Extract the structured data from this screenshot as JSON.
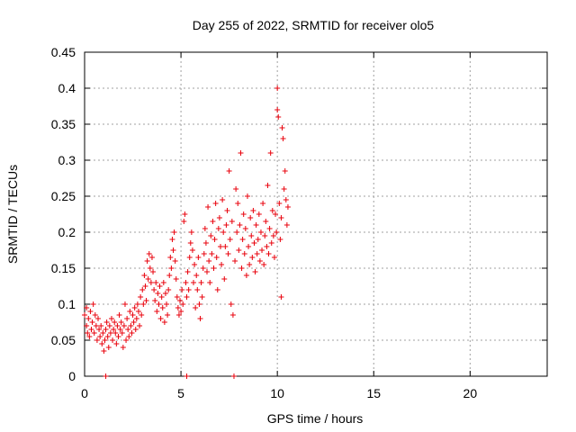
{
  "chart_data": {
    "type": "scatter",
    "title": "Day 255 of 2022, SRMTID for receiver olo5",
    "xlabel": "GPS time / hours",
    "ylabel": "SRMTID / TECUs",
    "xlim": [
      0,
      24
    ],
    "ylim": [
      0,
      0.45
    ],
    "xticks": [
      0,
      5,
      10,
      15,
      20
    ],
    "xtick_labels": [
      "0",
      "5",
      "10",
      "15",
      "20"
    ],
    "yticks": [
      0,
      0.05,
      0.1,
      0.15,
      0.2,
      0.25,
      0.3,
      0.35,
      0.4,
      0.45
    ],
    "ytick_labels": [
      "0",
      "0.05",
      "0.1",
      "0.15",
      "0.2",
      "0.25",
      "0.3",
      "0.35",
      "0.4",
      "0.45"
    ],
    "grid": true,
    "marker": "+",
    "color": "#e8000b",
    "series": [
      {
        "name": "olo5",
        "points": [
          [
            0.0,
            0.085
          ],
          [
            0.1,
            0.07
          ],
          [
            0.1,
            0.095
          ],
          [
            0.15,
            0.06
          ],
          [
            0.2,
            0.08
          ],
          [
            0.25,
            0.055
          ],
          [
            0.3,
            0.09
          ],
          [
            0.35,
            0.065
          ],
          [
            0.4,
            0.075
          ],
          [
            0.45,
            0.1
          ],
          [
            0.5,
            0.06
          ],
          [
            0.55,
            0.085
          ],
          [
            0.6,
            0.07
          ],
          [
            0.65,
            0.05
          ],
          [
            0.7,
            0.08
          ],
          [
            0.75,
            0.065
          ],
          [
            0.8,
            0.055
          ],
          [
            0.85,
            0.07
          ],
          [
            0.9,
            0.045
          ],
          [
            0.95,
            0.06
          ],
          [
            1.0,
            0.035
          ],
          [
            1.05,
            0.05
          ],
          [
            1.1,
            0.0
          ],
          [
            1.1,
            0.065
          ],
          [
            1.15,
            0.075
          ],
          [
            1.2,
            0.055
          ],
          [
            1.25,
            0.04
          ],
          [
            1.3,
            0.07
          ],
          [
            1.35,
            0.06
          ],
          [
            1.4,
            0.08
          ],
          [
            1.45,
            0.05
          ],
          [
            1.5,
            0.065
          ],
          [
            1.55,
            0.075
          ],
          [
            1.6,
            0.06
          ],
          [
            1.65,
            0.045
          ],
          [
            1.7,
            0.07
          ],
          [
            1.75,
            0.055
          ],
          [
            1.8,
            0.085
          ],
          [
            1.85,
            0.065
          ],
          [
            1.9,
            0.075
          ],
          [
            1.95,
            0.06
          ],
          [
            2.0,
            0.04
          ],
          [
            2.05,
            0.07
          ],
          [
            2.1,
            0.1
          ],
          [
            2.15,
            0.05
          ],
          [
            2.2,
            0.08
          ],
          [
            2.25,
            0.065
          ],
          [
            2.3,
            0.055
          ],
          [
            2.35,
            0.09
          ],
          [
            2.4,
            0.07
          ],
          [
            2.45,
            0.06
          ],
          [
            2.5,
            0.085
          ],
          [
            2.55,
            0.075
          ],
          [
            2.6,
            0.095
          ],
          [
            2.65,
            0.065
          ],
          [
            2.7,
            0.08
          ],
          [
            2.75,
            0.1
          ],
          [
            2.8,
            0.09
          ],
          [
            2.85,
            0.07
          ],
          [
            2.9,
            0.11
          ],
          [
            2.95,
            0.085
          ],
          [
            3.0,
            0.12
          ],
          [
            3.05,
            0.1
          ],
          [
            3.1,
            0.14
          ],
          [
            3.15,
            0.125
          ],
          [
            3.2,
            0.105
          ],
          [
            3.25,
            0.16
          ],
          [
            3.3,
            0.135
          ],
          [
            3.35,
            0.17
          ],
          [
            3.4,
            0.15
          ],
          [
            3.45,
            0.13
          ],
          [
            3.5,
            0.165
          ],
          [
            3.55,
            0.145
          ],
          [
            3.6,
            0.12
          ],
          [
            3.65,
            0.105
          ],
          [
            3.7,
            0.13
          ],
          [
            3.75,
            0.09
          ],
          [
            3.8,
            0.115
          ],
          [
            3.85,
            0.1
          ],
          [
            3.9,
            0.125
          ],
          [
            3.95,
            0.08
          ],
          [
            4.0,
            0.11
          ],
          [
            4.05,
            0.095
          ],
          [
            4.1,
            0.13
          ],
          [
            4.15,
            0.075
          ],
          [
            4.2,
            0.115
          ],
          [
            4.25,
            0.1
          ],
          [
            4.3,
            0.085
          ],
          [
            4.35,
            0.12
          ],
          [
            4.4,
            0.14
          ],
          [
            4.45,
            0.165
          ],
          [
            4.5,
            0.15
          ],
          [
            4.55,
            0.19
          ],
          [
            4.6,
            0.175
          ],
          [
            4.65,
            0.2
          ],
          [
            4.7,
            0.16
          ],
          [
            4.75,
            0.135
          ],
          [
            4.8,
            0.11
          ],
          [
            4.85,
            0.095
          ],
          [
            4.9,
            0.085
          ],
          [
            4.95,
            0.105
          ],
          [
            5.0,
            0.09
          ],
          [
            5.05,
            0.12
          ],
          [
            5.1,
            0.1
          ],
          [
            5.15,
            0.215
          ],
          [
            5.2,
            0.225
          ],
          [
            5.25,
            0.13
          ],
          [
            5.3,
            0.0
          ],
          [
            5.3,
            0.11
          ],
          [
            5.35,
            0.145
          ],
          [
            5.4,
            0.12
          ],
          [
            5.45,
            0.165
          ],
          [
            5.5,
            0.185
          ],
          [
            5.55,
            0.2
          ],
          [
            5.6,
            0.175
          ],
          [
            5.65,
            0.13
          ],
          [
            5.7,
            0.155
          ],
          [
            5.75,
            0.095
          ],
          [
            5.8,
            0.14
          ],
          [
            5.85,
            0.12
          ],
          [
            5.9,
            0.165
          ],
          [
            5.95,
            0.1
          ],
          [
            6.0,
            0.08
          ],
          [
            6.05,
            0.13
          ],
          [
            6.1,
            0.11
          ],
          [
            6.15,
            0.15
          ],
          [
            6.2,
            0.17
          ],
          [
            6.25,
            0.205
          ],
          [
            6.3,
            0.185
          ],
          [
            6.35,
            0.145
          ],
          [
            6.4,
            0.235
          ],
          [
            6.45,
            0.16
          ],
          [
            6.5,
            0.13
          ],
          [
            6.55,
            0.195
          ],
          [
            6.6,
            0.17
          ],
          [
            6.65,
            0.215
          ],
          [
            6.7,
            0.15
          ],
          [
            6.75,
            0.19
          ],
          [
            6.8,
            0.24
          ],
          [
            6.85,
            0.165
          ],
          [
            6.9,
            0.12
          ],
          [
            6.95,
            0.205
          ],
          [
            7.0,
            0.22
          ],
          [
            7.05,
            0.18
          ],
          [
            7.1,
            0.155
          ],
          [
            7.15,
            0.245
          ],
          [
            7.2,
            0.2
          ],
          [
            7.25,
            0.135
          ],
          [
            7.3,
            0.18
          ],
          [
            7.35,
            0.21
          ],
          [
            7.4,
            0.23
          ],
          [
            7.45,
            0.17
          ],
          [
            7.5,
            0.285
          ],
          [
            7.55,
            0.19
          ],
          [
            7.6,
            0.1
          ],
          [
            7.65,
            0.215
          ],
          [
            7.7,
            0.085
          ],
          [
            7.75,
            0.0
          ],
          [
            7.8,
            0.16
          ],
          [
            7.85,
            0.26
          ],
          [
            7.9,
            0.2
          ],
          [
            7.95,
            0.24
          ],
          [
            8.0,
            0.175
          ],
          [
            8.05,
            0.21
          ],
          [
            8.1,
            0.31
          ],
          [
            8.15,
            0.15
          ],
          [
            8.2,
            0.19
          ],
          [
            8.25,
            0.225
          ],
          [
            8.3,
            0.17
          ],
          [
            8.35,
            0.205
          ],
          [
            8.4,
            0.14
          ],
          [
            8.45,
            0.25
          ],
          [
            8.5,
            0.18
          ],
          [
            8.55,
            0.155
          ],
          [
            8.6,
            0.22
          ],
          [
            8.65,
            0.195
          ],
          [
            8.7,
            0.165
          ],
          [
            8.75,
            0.23
          ],
          [
            8.8,
            0.185
          ],
          [
            8.85,
            0.145
          ],
          [
            8.9,
            0.21
          ],
          [
            8.95,
            0.17
          ],
          [
            9.0,
            0.19
          ],
          [
            9.05,
            0.225
          ],
          [
            9.1,
            0.16
          ],
          [
            9.15,
            0.2
          ],
          [
            9.2,
            0.175
          ],
          [
            9.25,
            0.24
          ],
          [
            9.3,
            0.155
          ],
          [
            9.35,
            0.195
          ],
          [
            9.4,
            0.215
          ],
          [
            9.45,
            0.18
          ],
          [
            9.5,
            0.265
          ],
          [
            9.55,
            0.17
          ],
          [
            9.6,
            0.205
          ],
          [
            9.65,
            0.31
          ],
          [
            9.7,
            0.185
          ],
          [
            9.75,
            0.23
          ],
          [
            9.8,
            0.195
          ],
          [
            9.85,
            0.165
          ],
          [
            9.9,
            0.225
          ],
          [
            9.95,
            0.2
          ],
          [
            10.0,
            0.4
          ],
          [
            10.0,
            0.37
          ],
          [
            10.05,
            0.36
          ],
          [
            10.1,
            0.24
          ],
          [
            10.15,
            0.19
          ],
          [
            10.2,
            0.22
          ],
          [
            10.2,
            0.11
          ],
          [
            10.25,
            0.345
          ],
          [
            10.3,
            0.33
          ],
          [
            10.35,
            0.26
          ],
          [
            10.4,
            0.285
          ],
          [
            10.45,
            0.245
          ],
          [
            10.5,
            0.21
          ],
          [
            10.55,
            0.235
          ]
        ]
      }
    ]
  }
}
